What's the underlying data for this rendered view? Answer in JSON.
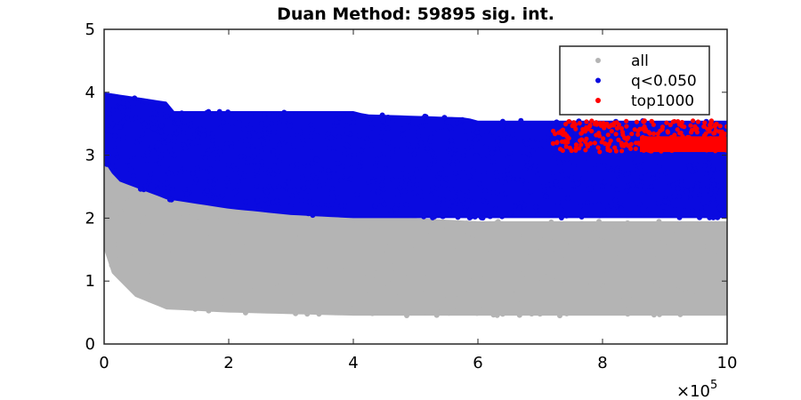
{
  "chart_data": {
    "type": "scatter",
    "title": "Duan Method: 59895 sig. int.",
    "xlabel": "",
    "ylabel": "",
    "xlim": [
      0,
      1000000
    ],
    "ylim": [
      0,
      5
    ],
    "x_exponent_label": "×10",
    "x_exponent_power": "5",
    "xticks": [
      0,
      200000,
      400000,
      600000,
      800000,
      1000000
    ],
    "xtick_labels": [
      "0",
      "2",
      "4",
      "6",
      "8",
      "10"
    ],
    "yticks": [
      0,
      1,
      2,
      3,
      4,
      5
    ],
    "ytick_labels": [
      "0",
      "1",
      "2",
      "3",
      "4",
      "5"
    ],
    "grid": false,
    "legend_position": "top-right",
    "series": [
      {
        "name": "all",
        "color": "#b4b4b4",
        "description_ranges": {
          "x": [
            0,
            1000000
          ],
          "y_min_curve": [
            [
              0,
              1.5
            ],
            [
              10000,
              1.15
            ],
            [
              50000,
              0.75
            ],
            [
              100000,
              0.55
            ],
            [
              200000,
              0.5
            ],
            [
              400000,
              0.45
            ],
            [
              600000,
              0.45
            ],
            [
              800000,
              0.45
            ],
            [
              1000000,
              0.45
            ]
          ],
          "y_max_curve": [
            [
              0,
              3.9
            ],
            [
              10000,
              3.0
            ],
            [
              50000,
              2.6
            ],
            [
              100000,
              2.35
            ],
            [
              200000,
              2.2
            ],
            [
              400000,
              2.05
            ],
            [
              600000,
              1.95
            ],
            [
              1000000,
              1.95
            ]
          ]
        }
      },
      {
        "name": "q<0.050",
        "color": "#0a0ae0",
        "description_ranges": {
          "x": [
            0,
            1000000
          ],
          "y_min_curve": [
            [
              0,
              2.9
            ],
            [
              20000,
              2.6
            ],
            [
              100000,
              2.3
            ],
            [
              200000,
              2.15
            ],
            [
              300000,
              2.05
            ],
            [
              400000,
              2.0
            ],
            [
              600000,
              2.0
            ],
            [
              1000000,
              2.0
            ]
          ],
          "y_max_curve": [
            [
              0,
              4.0
            ],
            [
              100000,
              3.85
            ],
            [
              110000,
              3.7
            ],
            [
              400000,
              3.7
            ],
            [
              420000,
              3.65
            ],
            [
              580000,
              3.6
            ],
            [
              600000,
              3.55
            ],
            [
              1000000,
              3.55
            ]
          ]
        }
      },
      {
        "name": "top1000",
        "color": "#ff0000",
        "description_ranges": {
          "x": [
            720000,
            1000000
          ],
          "y": [
            3.05,
            3.55
          ]
        }
      }
    ],
    "legend_entries": [
      "all",
      "q<0.050",
      "top1000"
    ]
  }
}
